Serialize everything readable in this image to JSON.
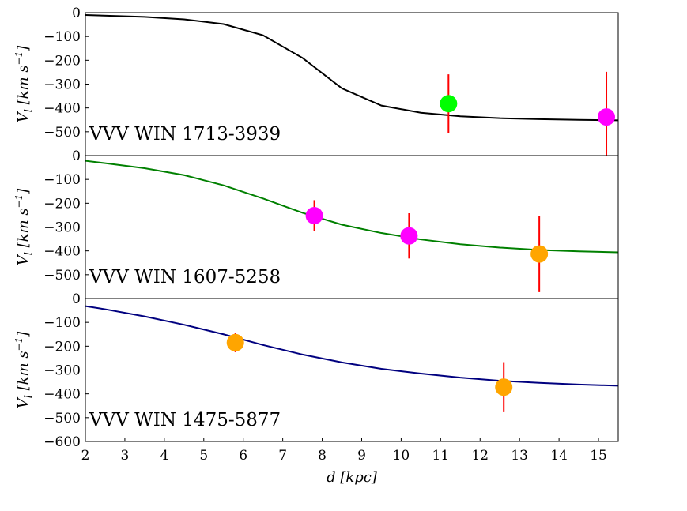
{
  "chart_data": [
    {
      "type": "line",
      "label": "VVV WIN 1713-3939",
      "ylabel": "V_l [km s^-1]",
      "ylim": [
        -600,
        0
      ],
      "yticks": [
        0,
        -100,
        -200,
        -300,
        -400,
        -500
      ],
      "xlim": [
        2,
        15.5
      ],
      "model": {
        "color": "#000000",
        "x": [
          2,
          3.5,
          4.5,
          5.5,
          6.5,
          7.5,
          8.5,
          9.5,
          10.5,
          11.5,
          12.5,
          13.5,
          14.5,
          15.5
        ],
        "y": [
          -10,
          -18,
          -28,
          -48,
          -95,
          -190,
          -318,
          -390,
          -420,
          -435,
          -443,
          -447,
          -450,
          -452
        ]
      },
      "points": [
        {
          "x": 11.2,
          "y": -382,
          "err": 123,
          "color": "#00ff00"
        },
        {
          "x": 15.2,
          "y": -438,
          "err": 190,
          "color": "#ff00ff"
        }
      ]
    },
    {
      "type": "line",
      "label": "VVV WIN 1607-5258",
      "ylabel": "V_l [km s^-1]",
      "ylim": [
        -600,
        0
      ],
      "yticks": [
        0,
        -100,
        -200,
        -300,
        -400,
        -500
      ],
      "xlim": [
        2,
        15.5
      ],
      "model": {
        "color": "#008000",
        "x": [
          2,
          2.5,
          3.5,
          4.5,
          5.5,
          6.5,
          7.5,
          8.5,
          9.5,
          10.5,
          11.5,
          12.5,
          13.5,
          14.5,
          15.5
        ],
        "y": [
          -22,
          -32,
          -53,
          -82,
          -125,
          -180,
          -240,
          -290,
          -325,
          -352,
          -372,
          -386,
          -396,
          -402,
          -406
        ]
      },
      "points": [
        {
          "x": 7.8,
          "y": -252,
          "err": 65,
          "color": "#ff00ff"
        },
        {
          "x": 10.2,
          "y": -337,
          "err": 95,
          "color": "#ff00ff"
        },
        {
          "x": 13.5,
          "y": -413,
          "err": 160,
          "color": "#ffa500"
        }
      ]
    },
    {
      "type": "line",
      "label": "VVV WIN 1475-5877",
      "ylabel": "V_l [km s^-1]",
      "ylim": [
        -600,
        0
      ],
      "yticks": [
        0,
        -100,
        -200,
        -300,
        -400,
        -500,
        -600
      ],
      "xlim": [
        2,
        15.5
      ],
      "xlabel": "d [kpc]",
      "xticks": [
        2,
        3,
        4,
        5,
        6,
        7,
        8,
        9,
        10,
        11,
        12,
        13,
        14,
        15
      ],
      "model": {
        "color": "#00007f",
        "x": [
          2,
          2.5,
          3.5,
          4.5,
          5.5,
          6.5,
          7.5,
          8.5,
          9.5,
          10.5,
          11.5,
          12.5,
          13.5,
          14.5,
          15.5
        ],
        "y": [
          -32,
          -45,
          -75,
          -110,
          -150,
          -195,
          -235,
          -268,
          -295,
          -315,
          -332,
          -345,
          -354,
          -361,
          -366
        ]
      },
      "points": [
        {
          "x": 5.8,
          "y": -185,
          "err": 40,
          "color": "#ffa500"
        },
        {
          "x": 12.6,
          "y": -372,
          "err": 105,
          "color": "#ffa500"
        }
      ]
    }
  ]
}
